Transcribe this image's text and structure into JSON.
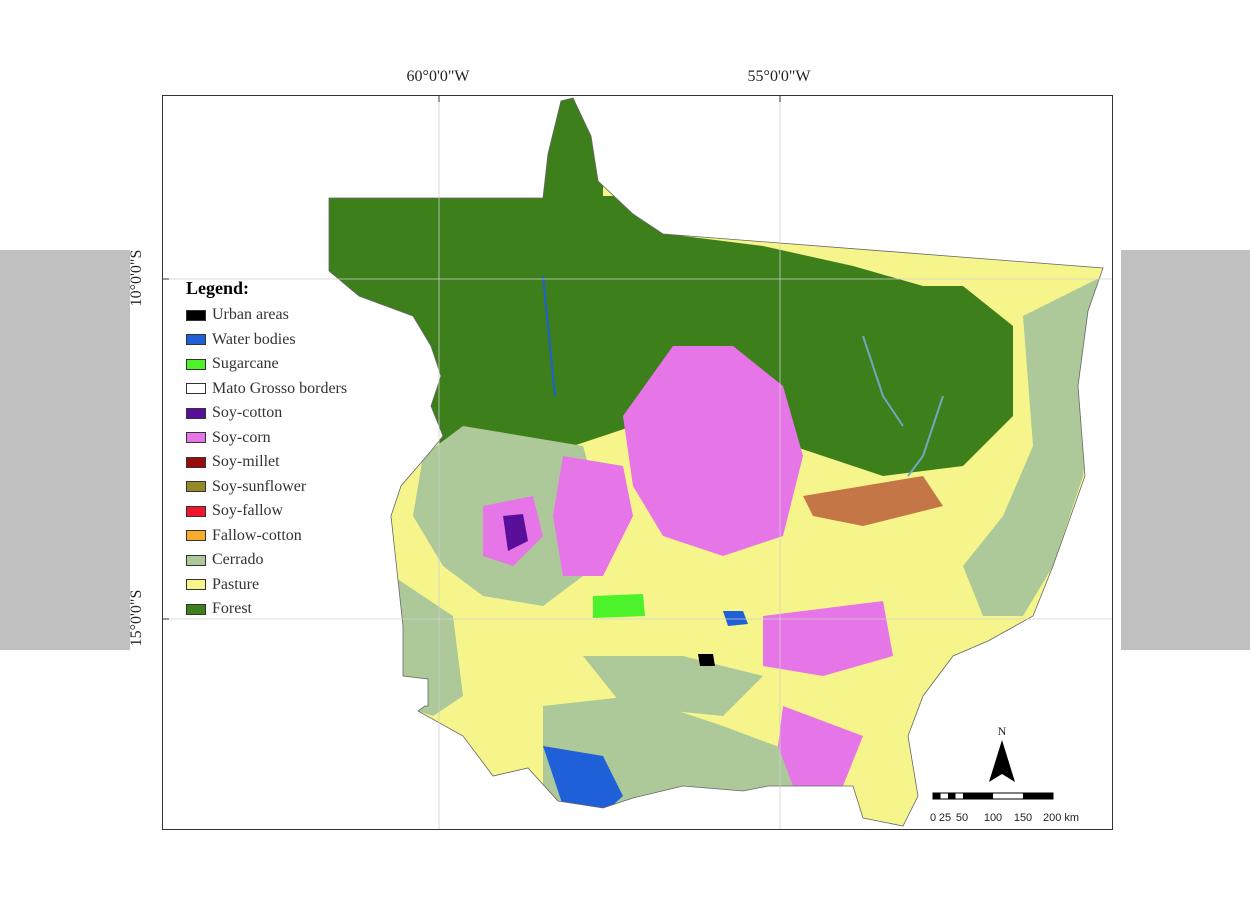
{
  "graticule": {
    "longitudes": [
      {
        "label": "60°0'0\"W"
      },
      {
        "label": "55°0'0\"W"
      }
    ],
    "latitudes": [
      {
        "label": "10°0'0\"S"
      },
      {
        "label": "15°0'0\"S"
      }
    ]
  },
  "legend": {
    "title": "Legend:",
    "items": [
      {
        "label": "Urban areas",
        "color": "#000000"
      },
      {
        "label": "Water bodies",
        "color": "#1f5fd8"
      },
      {
        "label": "Sugarcane",
        "color": "#4cf22a"
      },
      {
        "label": "Mato Grosso borders",
        "color": "#ffffff"
      },
      {
        "label": "Soy-cotton",
        "color": "#5a0f9a"
      },
      {
        "label": "Soy-corn",
        "color": "#e676e8"
      },
      {
        "label": "Soy-millet",
        "color": "#9a0c0c"
      },
      {
        "label": "Soy-sunflower",
        "color": "#968826"
      },
      {
        "label": "Soy-fallow",
        "color": "#f0142c"
      },
      {
        "label": "Fallow-cotton",
        "color": "#f9ad2e"
      },
      {
        "label": "Cerrado",
        "color": "#adc99a"
      },
      {
        "label": "Pasture",
        "color": "#f6f58c"
      },
      {
        "label": "Forest",
        "color": "#3d7f1a"
      }
    ]
  },
  "north_arrow": {
    "label": "N"
  },
  "scale_bar": {
    "labels": [
      "0",
      "25",
      "50",
      "100",
      "150",
      "200 km"
    ]
  }
}
